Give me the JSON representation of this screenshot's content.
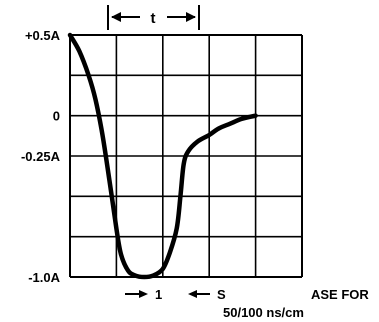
{
  "chart_data": {
    "type": "line",
    "title": "",
    "xlabel": "",
    "ylabel": "",
    "y_tick_labels": [
      "+0.5A",
      "0",
      "-0.25A",
      "-1.0A"
    ],
    "y_tick_values": [
      0.5,
      0,
      -0.25,
      -1.0
    ],
    "ylim": [
      -1.0,
      0.5
    ],
    "xlim": [
      0,
      5
    ],
    "x_unit": "divisions",
    "grid": true,
    "grid_columns": 5,
    "grid_rows": 6,
    "series": [
      {
        "x": [
          0,
          0.2,
          0.4,
          0.55,
          0.7,
          0.85,
          1.0,
          1.1,
          1.25,
          1.4,
          1.6,
          1.8,
          2.0,
          2.15,
          2.3,
          2.38,
          2.45,
          2.55,
          2.75,
          3.0,
          3.2,
          3.45,
          3.7,
          4.0
        ],
        "y": [
          0.5,
          0.4,
          0.25,
          0.1,
          -0.12,
          -0.4,
          -0.7,
          -0.86,
          -0.96,
          -0.99,
          -1.0,
          -0.99,
          -0.95,
          -0.85,
          -0.7,
          -0.5,
          -0.3,
          -0.22,
          -0.16,
          -0.12,
          -0.08,
          -0.05,
          -0.02,
          0.0
        ]
      }
    ],
    "annotations": {
      "t_label": "t",
      "marker_1": "1",
      "marker_s": "S",
      "base_label_line1": "ASE FOR",
      "base_label_line2": "50/100 ns/cm"
    },
    "colors": {
      "line": "#000000",
      "grid": "#000000",
      "background": "#ffffff"
    }
  }
}
